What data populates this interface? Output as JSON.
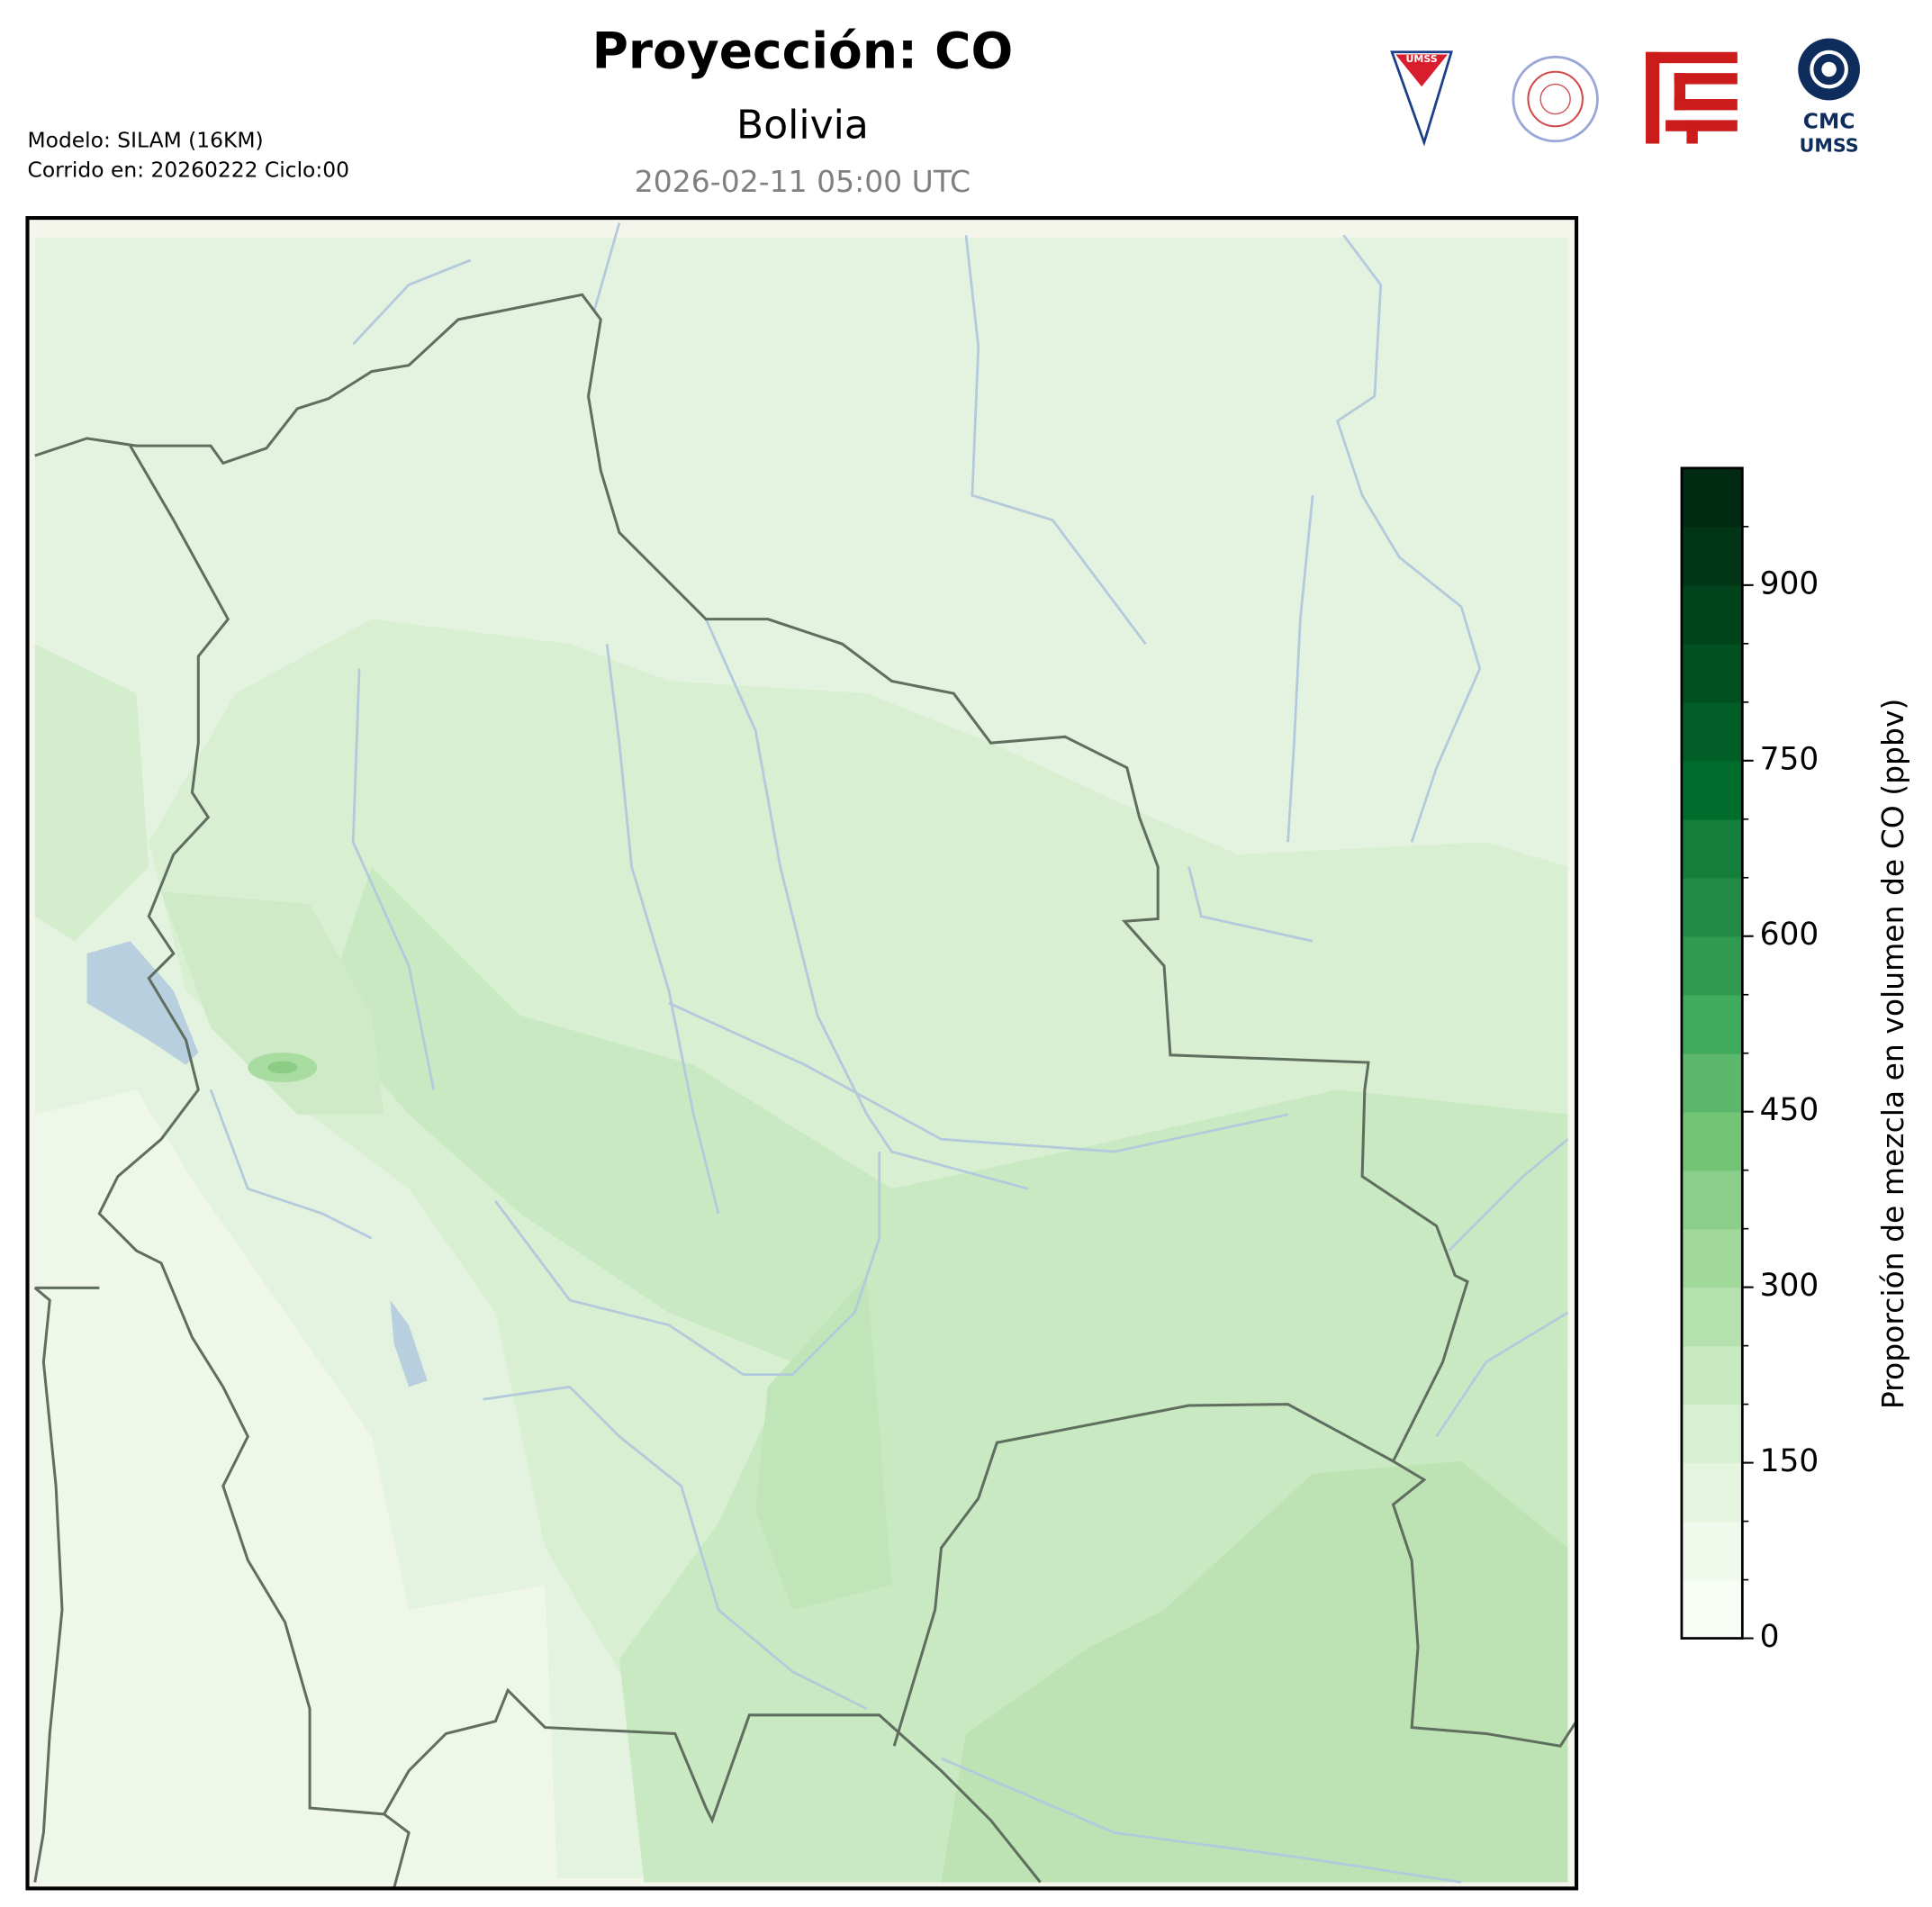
{
  "header": {
    "title": "Proyección: CO",
    "subtitle": "Bolivia",
    "date": "2026-02-11 05:00 UTC",
    "model": "Modelo: SILAM (16KM)",
    "run": "Corrido en: 20260222 Ciclo:00",
    "logos": [
      "UMSS",
      "CMC",
      "UMSS"
    ]
  },
  "chart_data": {
    "type": "colorbar",
    "label": "Proporción de mezcla en volumen de CO (ppbv)",
    "ylim": [
      0,
      1000
    ],
    "yticks": [
      0,
      150,
      300,
      450,
      600,
      750,
      900
    ],
    "colors": [
      "#f7fcf5",
      "#eff9ec",
      "#e5f5e0",
      "#d8f0d2",
      "#c7e9c0",
      "#b5e1ae",
      "#a1d99b",
      "#8bce89",
      "#74c476",
      "#5cb86b",
      "#41ab5d",
      "#329a50",
      "#238b45",
      "#147e3a",
      "#006d2c",
      "#005e26",
      "#005020",
      "#00441b",
      "#003616",
      "#002a11"
    ]
  }
}
